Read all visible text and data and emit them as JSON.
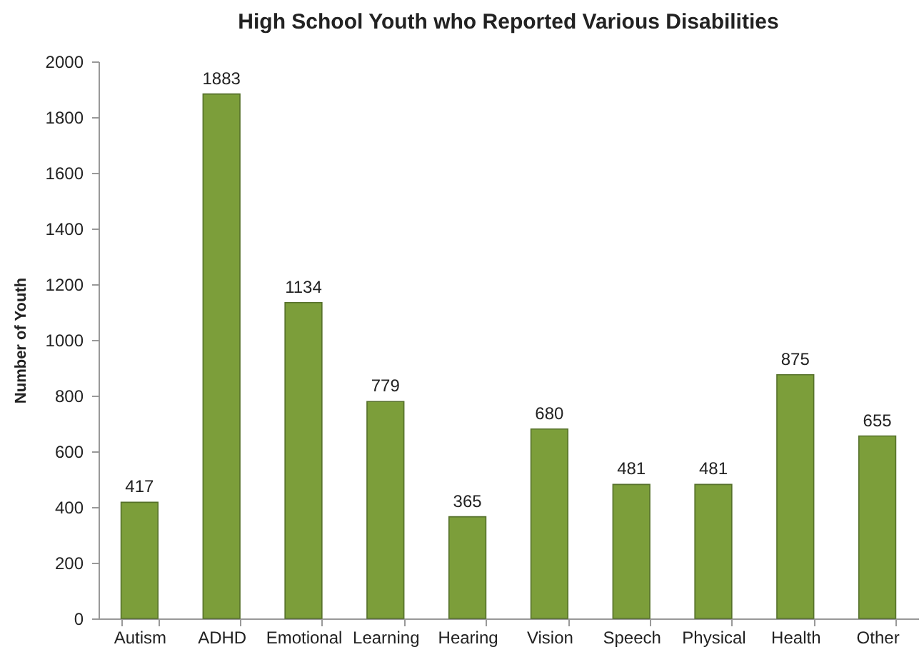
{
  "chart_data": {
    "type": "bar",
    "title": "High School Youth who Reported Various Disabilities",
    "ylabel": "Number of Youth",
    "categories": [
      "Autism",
      "ADHD",
      "Emotional",
      "Learning",
      "Hearing",
      "Vision",
      "Speech",
      "Physical",
      "Health",
      "Other"
    ],
    "values": [
      417,
      1883,
      1134,
      779,
      365,
      680,
      481,
      481,
      875,
      655
    ],
    "color": "#7c9e3a",
    "ylim": [
      0,
      2000
    ],
    "yticks": [
      0,
      200,
      400,
      600,
      800,
      1000,
      1200,
      1400,
      1600,
      1800,
      2000
    ],
    "data_labels": true
  }
}
